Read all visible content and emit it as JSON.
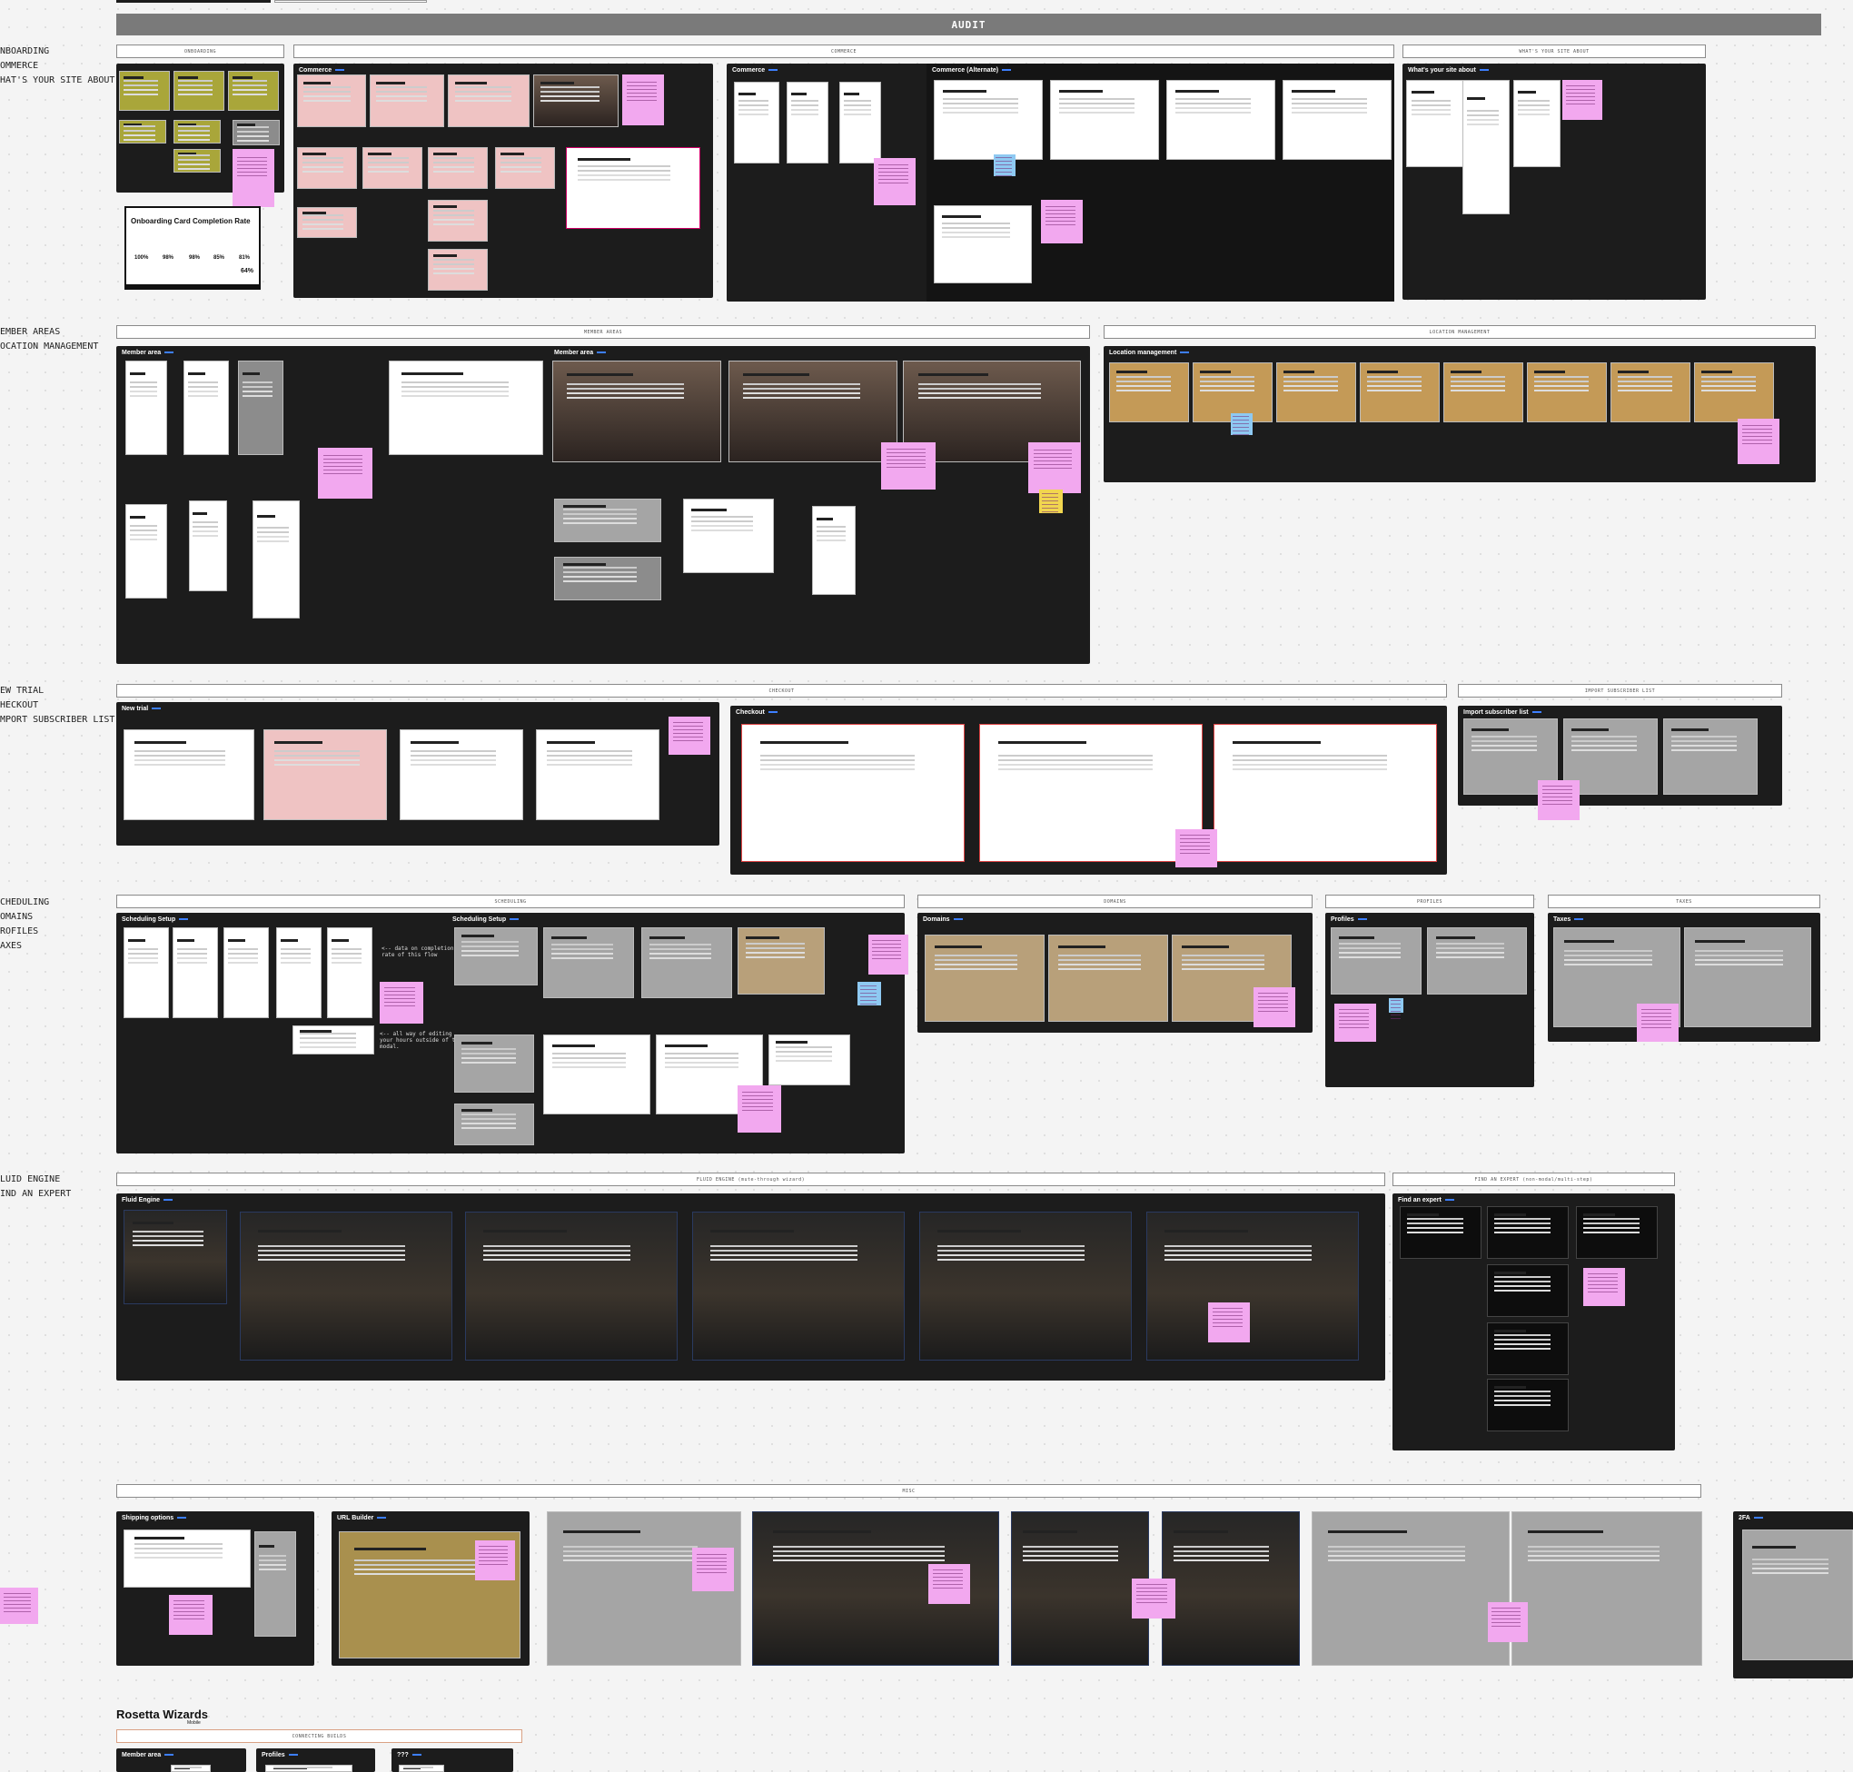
{
  "audit_title": "AUDIT",
  "row_labels": {
    "r1": "NBOARDING\nOMMERCE\nHAT'S YOUR SITE ABOUT",
    "r2": "EMBER AREAS\nOCATION MANAGEMENT",
    "r3": "EW TRIAL\nHECKOUT\nMPORT SUBSCRIBER LIST",
    "r4": "CHEDULING\nOMAINS\nROFILES\nAXES",
    "r5": "LUID ENGINE\nIND AN EXPERT"
  },
  "sections": {
    "onboarding": "ONBOARDING",
    "commerce": "COMMERCE",
    "site_about": "WHAT'S YOUR SITE ABOUT",
    "member_areas": "MEMBER AREAS",
    "location_management": "LOCATION MANAGEMENT",
    "checkout": "CHECKOUT",
    "import_list": "IMPORT SUBSCRIBER LIST",
    "scheduling": "SCHEDULING",
    "domains": "DOMAINS",
    "profiles": "PROFILES",
    "taxes": "TAXES",
    "fluid_engine": "FLUID ENGINE (mute-through wizard)",
    "find_expert": "FIND AN EXPERT (non-modal/multi-step)",
    "misc": "MISC",
    "connecting_builds": "CONNECTING BUILDS"
  },
  "boards": {
    "commerce": "Commerce",
    "commerce_alt": "Commerce (Alternate)",
    "commerce_left": "Commerce",
    "site_about": "What's your site about",
    "member_area_1": "Member area",
    "member_area_2": "Member area",
    "location_management": "Location management",
    "new_trial": "New trial",
    "checkout": "Checkout",
    "import_list": "Import subscriber list",
    "scheduling_1": "Scheduling Setup",
    "scheduling_2": "Scheduling Setup",
    "domains": "Domains",
    "profiles": "Profiles",
    "taxes": "Taxes",
    "fluid_engine": "Fluid Engine",
    "find_expert": "Find an expert",
    "shipping": "Shipping options",
    "url_builder": "URL Builder",
    "twofa": "2FA",
    "mobile_member": "Member area",
    "mobile_profiles": "Profiles",
    "mobile_qqq": "???"
  },
  "onboarding_card": {
    "title": "Onboarding Card Completion Rate",
    "rates": [
      "100%",
      "98%",
      "98%",
      "85%",
      "81%"
    ],
    "total": "64%"
  },
  "scheduling_notes": {
    "note1": "<-- data on completion\nrate of this flow",
    "note2": "<-- all way of editing\nyour hours outside of the\nmodal."
  },
  "rosetta": {
    "title": "Rosetta Wizards",
    "subtitle": "Mobile"
  }
}
